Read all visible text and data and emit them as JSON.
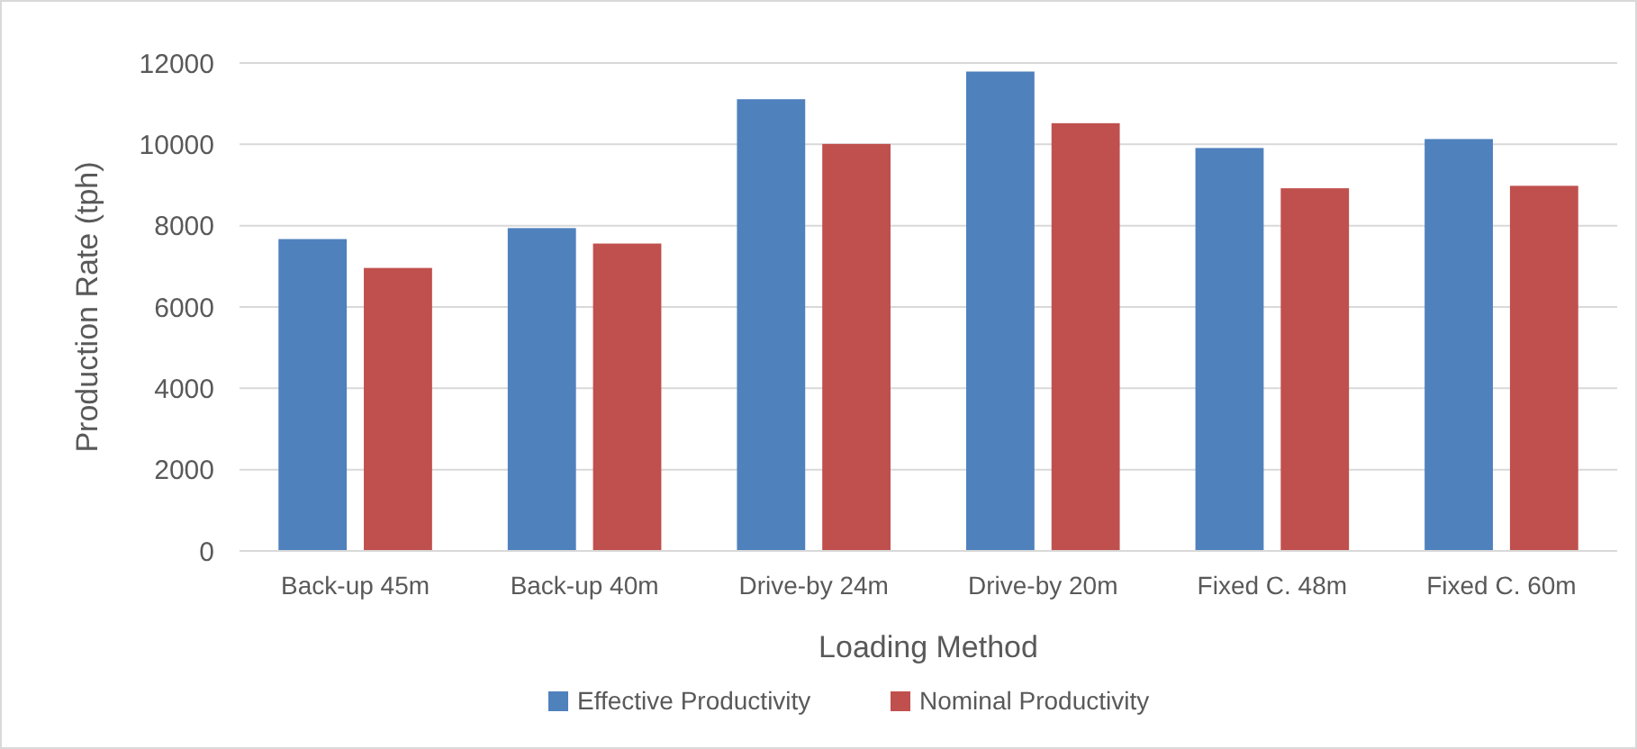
{
  "chart_data": {
    "type": "bar",
    "xlabel": "Loading Method",
    "ylabel": "Production Rate (tph)",
    "categories": [
      "Back-up 45m",
      "Back-up 40m",
      "Drive-by 24m",
      "Drive-by 20m",
      "Fixed C. 48m",
      "Fixed C. 60m"
    ],
    "series": [
      {
        "name": "Effective Productivity",
        "color": "#4f81bd",
        "values": [
          7670,
          7940,
          11110,
          11790,
          9910,
          10130
        ]
      },
      {
        "name": "Nominal Productivity",
        "color": "#c0504d",
        "values": [
          6960,
          7560,
          10010,
          10520,
          8920,
          8980
        ]
      }
    ],
    "ylim": [
      0,
      12000
    ],
    "yticks": [
      0,
      2000,
      4000,
      6000,
      8000,
      10000,
      12000
    ],
    "grid": "y",
    "legend": "bottom"
  }
}
